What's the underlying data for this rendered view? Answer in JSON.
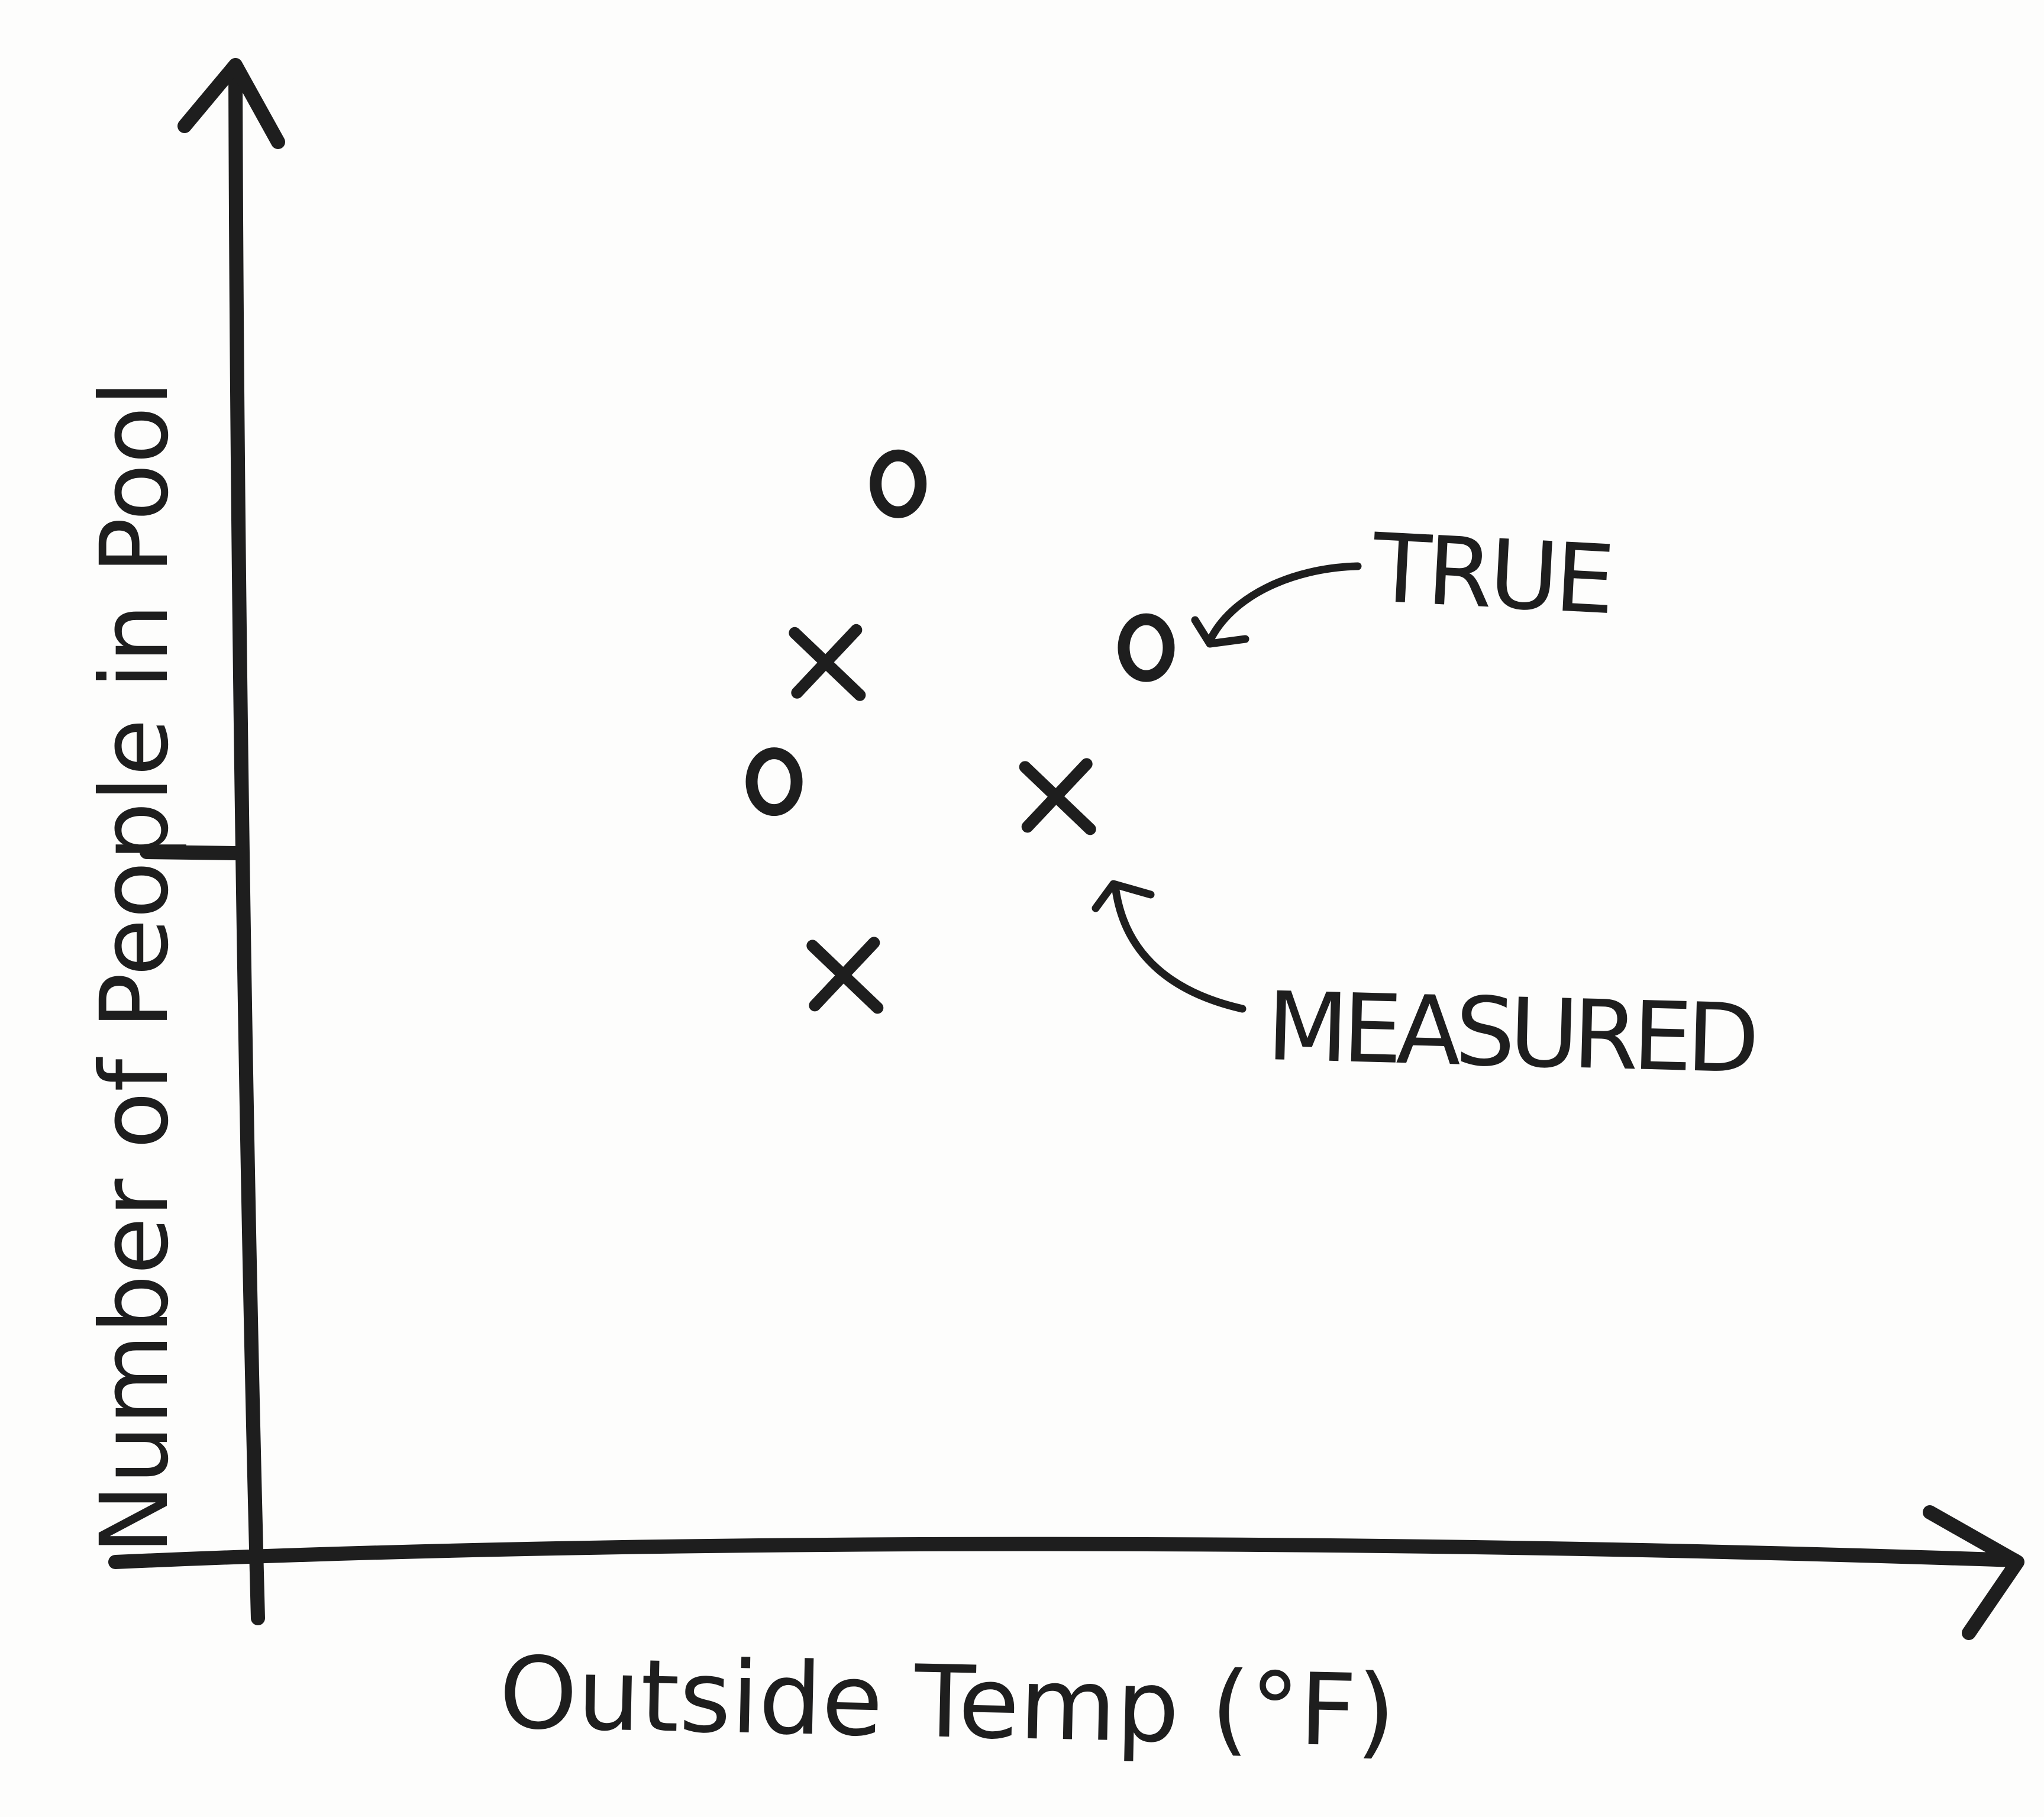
{
  "chart_data": {
    "type": "scatter",
    "title": "",
    "xlabel": "Outside Temp (°F)",
    "ylabel": "Number of People in Pool",
    "grid": false,
    "legend": "none",
    "series": [
      {
        "name": "TRUE",
        "marker": "O",
        "points": [
          {
            "x": 0.37,
            "y": 0.72
          },
          {
            "x": 0.51,
            "y": 0.61
          },
          {
            "x": 0.3,
            "y": 0.52
          }
        ]
      },
      {
        "name": "MEASURED",
        "marker": "X",
        "points": [
          {
            "x": 0.33,
            "y": 0.6
          },
          {
            "x": 0.46,
            "y": 0.51
          },
          {
            "x": 0.34,
            "y": 0.39
          }
        ]
      }
    ],
    "annotations": [
      {
        "text": "TRUE",
        "points_to_series": 0,
        "points_to_index": 1
      },
      {
        "text": "MEASURED",
        "points_to_series": 1,
        "points_to_index": 1
      }
    ],
    "colors": {
      "ink": "#1e1e1e",
      "paper": "#fdfdfc"
    }
  }
}
